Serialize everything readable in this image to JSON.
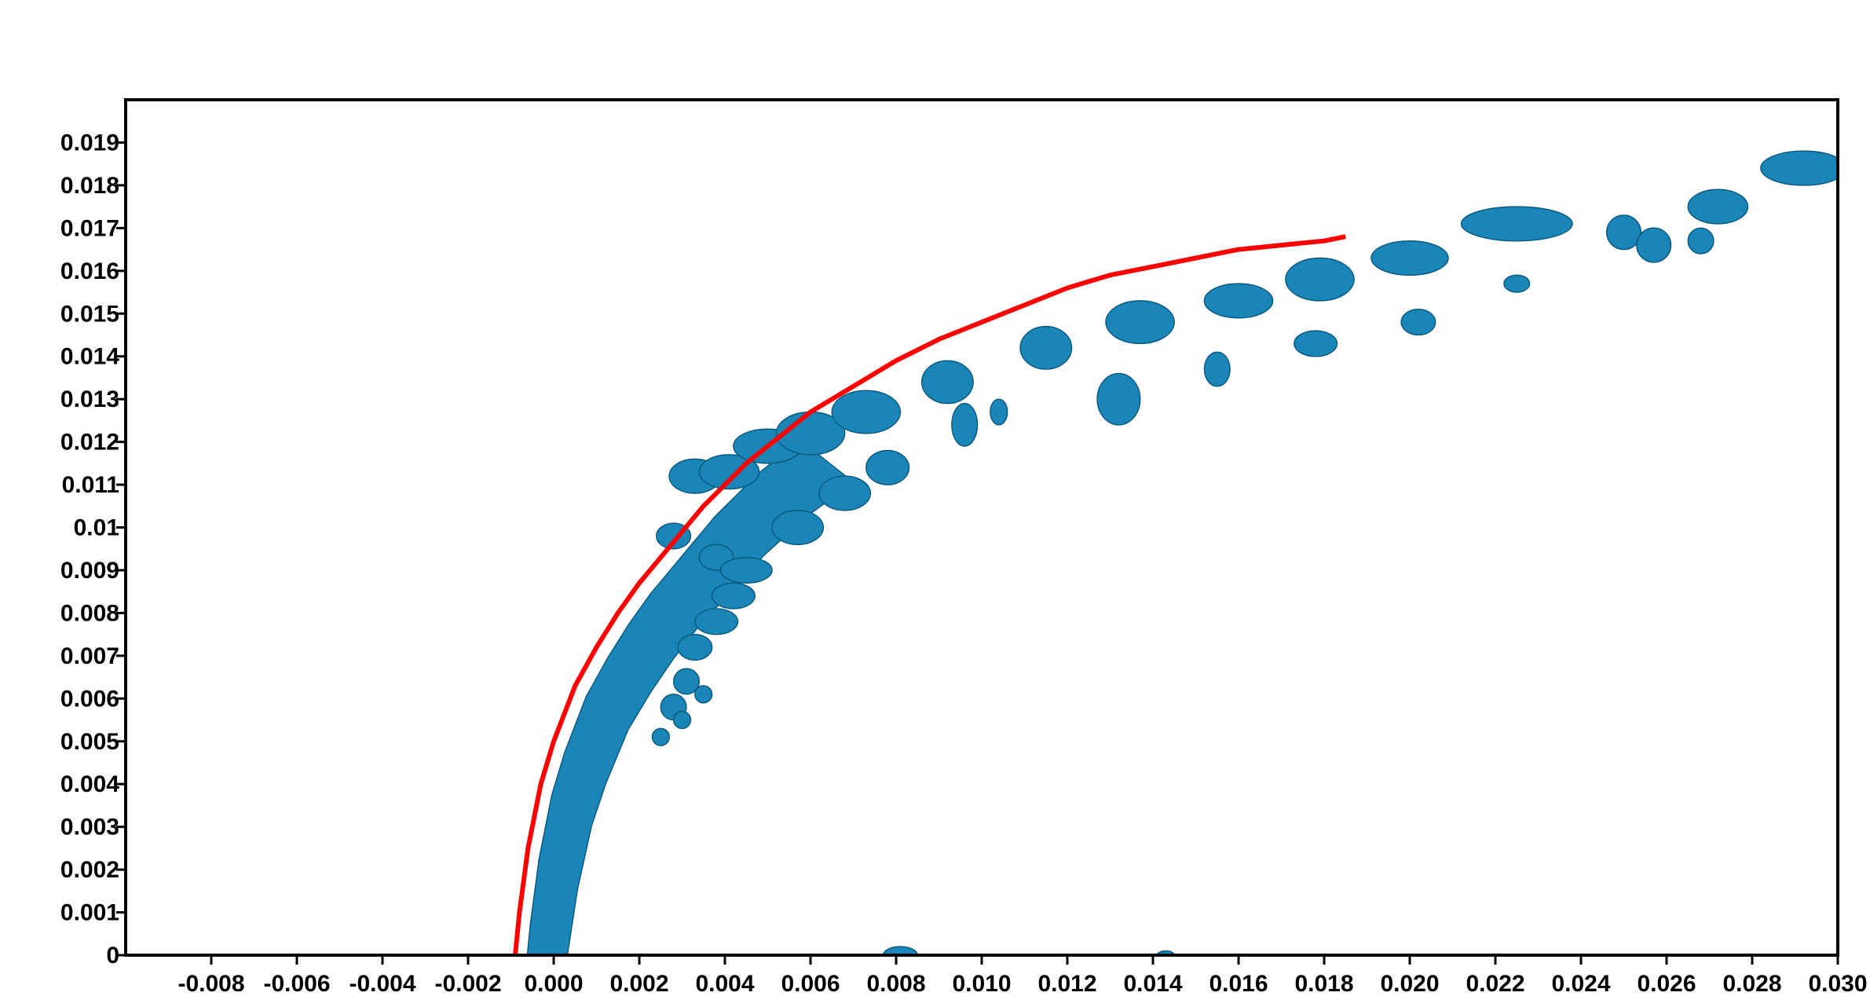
{
  "chart_data": {
    "type": "scatter",
    "title": "",
    "xlabel": "",
    "ylabel": "",
    "xlim": [
      -0.01,
      0.03
    ],
    "ylim": [
      0,
      0.02
    ],
    "grid": false,
    "x_ticks": [
      "-0.008",
      "-0.006",
      "-0.004",
      "-0.002",
      "0.000",
      "0.002",
      "0.004",
      "0.006",
      "0.008",
      "0.010",
      "0.012",
      "0.014",
      "0.016",
      "0.018",
      "0.020",
      "0.022",
      "0.024",
      "0.026",
      "0.028",
      "0.030"
    ],
    "y_ticks": [
      "0",
      "0.001",
      "0.002",
      "0.003",
      "0.004",
      "0.005",
      "0.006",
      "0.007",
      "0.008",
      "0.009",
      "0.01",
      "0.011",
      "0.012",
      "0.013",
      "0.014",
      "0.015",
      "0.016",
      "0.017",
      "0.018",
      "0.019"
    ],
    "front_line": {
      "color": "#ff0000",
      "x": [
        -0.0009,
        -0.0008,
        -0.0006,
        -0.0003,
        0.0,
        0.0005,
        0.001,
        0.0015,
        0.002,
        0.0025,
        0.003,
        0.0035,
        0.004,
        0.0045,
        0.005,
        0.0055,
        0.006,
        0.007,
        0.008,
        0.009,
        0.01,
        0.011,
        0.012,
        0.013,
        0.014,
        0.015,
        0.016,
        0.017,
        0.018,
        0.0185
      ],
      "y": [
        0.0,
        0.001,
        0.0025,
        0.004,
        0.005,
        0.0063,
        0.0072,
        0.008,
        0.0087,
        0.0093,
        0.0099,
        0.0105,
        0.011,
        0.0115,
        0.0119,
        0.0123,
        0.0127,
        0.0133,
        0.0139,
        0.0144,
        0.0148,
        0.0152,
        0.0156,
        0.0159,
        0.0161,
        0.0163,
        0.0165,
        0.0166,
        0.0167,
        0.0168
      ]
    },
    "blobs": {
      "color": "#1a86b8",
      "points": [
        {
          "x": 0.0033,
          "y": 0.0112,
          "rx": 0.0006,
          "ry": 0.0004
        },
        {
          "x": 0.0041,
          "y": 0.0113,
          "rx": 0.0007,
          "ry": 0.0004
        },
        {
          "x": 0.005,
          "y": 0.0119,
          "rx": 0.0008,
          "ry": 0.0004
        },
        {
          "x": 0.006,
          "y": 0.0122,
          "rx": 0.0008,
          "ry": 0.0005
        },
        {
          "x": 0.0073,
          "y": 0.0127,
          "rx": 0.0008,
          "ry": 0.0005
        },
        {
          "x": 0.0092,
          "y": 0.0134,
          "rx": 0.0006,
          "ry": 0.0005
        },
        {
          "x": 0.0115,
          "y": 0.0142,
          "rx": 0.0006,
          "ry": 0.0005
        },
        {
          "x": 0.0137,
          "y": 0.0148,
          "rx": 0.0008,
          "ry": 0.0005
        },
        {
          "x": 0.016,
          "y": 0.0153,
          "rx": 0.0008,
          "ry": 0.0004
        },
        {
          "x": 0.0179,
          "y": 0.0158,
          "rx": 0.0008,
          "ry": 0.0005
        },
        {
          "x": 0.02,
          "y": 0.0163,
          "rx": 0.0009,
          "ry": 0.0004
        },
        {
          "x": 0.0225,
          "y": 0.0171,
          "rx": 0.0013,
          "ry": 0.0004
        },
        {
          "x": 0.025,
          "y": 0.0169,
          "rx": 0.0004,
          "ry": 0.0004
        },
        {
          "x": 0.0257,
          "y": 0.0166,
          "rx": 0.0004,
          "ry": 0.0004
        },
        {
          "x": 0.0272,
          "y": 0.0175,
          "rx": 0.0007,
          "ry": 0.0004
        },
        {
          "x": 0.0292,
          "y": 0.0184,
          "rx": 0.001,
          "ry": 0.0004
        },
        {
          "x": 0.0268,
          "y": 0.0167,
          "rx": 0.0003,
          "ry": 0.0003
        },
        {
          "x": 0.0028,
          "y": 0.0098,
          "rx": 0.0004,
          "ry": 0.0003
        },
        {
          "x": 0.0038,
          "y": 0.0093,
          "rx": 0.0004,
          "ry": 0.0003
        },
        {
          "x": 0.0045,
          "y": 0.009,
          "rx": 0.0006,
          "ry": 0.0003
        },
        {
          "x": 0.0042,
          "y": 0.0084,
          "rx": 0.0005,
          "ry": 0.0003
        },
        {
          "x": 0.0038,
          "y": 0.0078,
          "rx": 0.0005,
          "ry": 0.0003
        },
        {
          "x": 0.0033,
          "y": 0.0072,
          "rx": 0.0004,
          "ry": 0.0003
        },
        {
          "x": 0.0031,
          "y": 0.0064,
          "rx": 0.0003,
          "ry": 0.0003
        },
        {
          "x": 0.0035,
          "y": 0.0061,
          "rx": 0.0002,
          "ry": 0.0002
        },
        {
          "x": 0.0028,
          "y": 0.0058,
          "rx": 0.0003,
          "ry": 0.0003
        },
        {
          "x": 0.003,
          "y": 0.0055,
          "rx": 0.0002,
          "ry": 0.0002
        },
        {
          "x": 0.0025,
          "y": 0.0051,
          "rx": 0.0002,
          "ry": 0.0002
        },
        {
          "x": 0.0057,
          "y": 0.01,
          "rx": 0.0006,
          "ry": 0.0004
        },
        {
          "x": 0.0068,
          "y": 0.0108,
          "rx": 0.0006,
          "ry": 0.0004
        },
        {
          "x": 0.0078,
          "y": 0.0114,
          "rx": 0.0005,
          "ry": 0.0004
        },
        {
          "x": 0.0096,
          "y": 0.0124,
          "rx": 0.0003,
          "ry": 0.0005
        },
        {
          "x": 0.0104,
          "y": 0.0127,
          "rx": 0.0002,
          "ry": 0.0003
        },
        {
          "x": 0.0132,
          "y": 0.013,
          "rx": 0.0005,
          "ry": 0.0006
        },
        {
          "x": 0.0155,
          "y": 0.0137,
          "rx": 0.0003,
          "ry": 0.0004
        },
        {
          "x": 0.0178,
          "y": 0.0143,
          "rx": 0.0005,
          "ry": 0.0003
        },
        {
          "x": 0.0202,
          "y": 0.0148,
          "rx": 0.0004,
          "ry": 0.0003
        },
        {
          "x": 0.0225,
          "y": 0.0157,
          "rx": 0.0003,
          "ry": 0.0002
        },
        {
          "x": 0.0081,
          "y": 0.0,
          "rx": 0.0004,
          "ry": 0.0002
        },
        {
          "x": 0.0143,
          "y": 0.0,
          "rx": 0.0002,
          "ry": 0.0001
        }
      ]
    }
  }
}
